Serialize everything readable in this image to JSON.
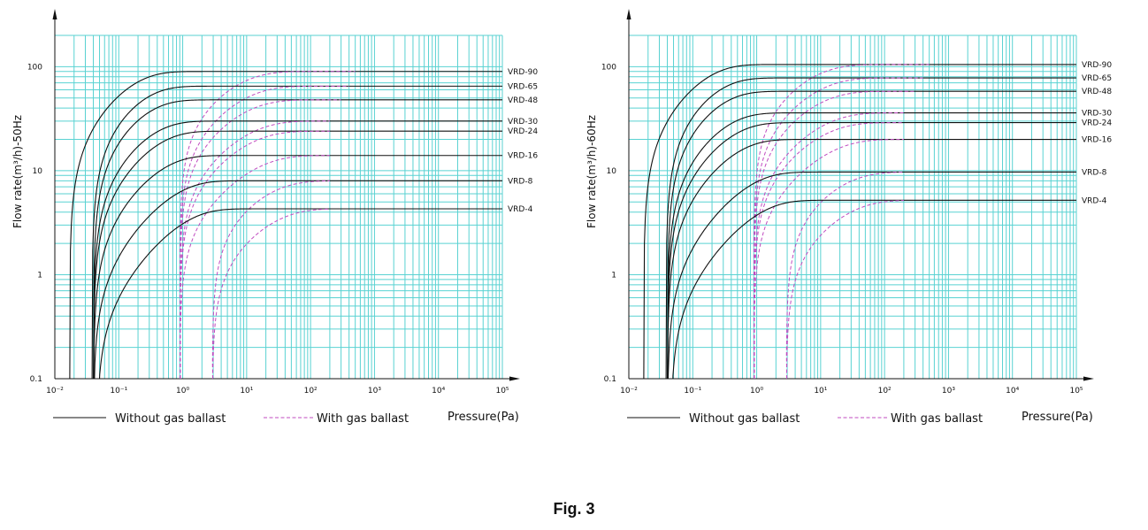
{
  "caption": "Fig. 3",
  "colors": {
    "grid": "#59d2d2",
    "solid": "#111111",
    "dashed": "#c04bc0"
  },
  "chart_data": [
    {
      "type": "line",
      "scale": "log-log",
      "ylabel": "Flow rate(m³/h)-50Hz",
      "xlabel": "Pressure(Pa)",
      "xlim": [
        0.01,
        100000
      ],
      "ylim": [
        0.1,
        200
      ],
      "x_ticks": [
        0.01,
        0.1,
        1,
        10,
        100,
        1000,
        10000,
        100000
      ],
      "x_tick_labels": [
        "10⁻²",
        "10⁻¹",
        "10⁰",
        "10¹",
        "10²",
        "10³",
        "10⁴",
        "10⁵"
      ],
      "y_ticks": [
        0.1,
        1,
        10,
        100
      ],
      "y_tick_labels": [
        "0.1",
        "1",
        "10",
        "100"
      ],
      "grid": true,
      "legend": [
        "Without gas ballast",
        "With gas ballast"
      ],
      "series": [
        {
          "name": "VRD-90",
          "ymax": 90,
          "x0": 0.017,
          "knee": 0.1,
          "xg": 0.9,
          "kg": 4,
          "x_end": 500
        },
        {
          "name": "VRD-65",
          "ymax": 65,
          "x0": 0.038,
          "knee": 0.14,
          "xg": 0.9,
          "kg": 5,
          "x_end": 400
        },
        {
          "name": "VRD-48",
          "ymax": 48,
          "x0": 0.04,
          "knee": 0.16,
          "xg": 0.9,
          "kg": 5,
          "x_end": 300
        },
        {
          "name": "VRD-30",
          "ymax": 30,
          "x0": 0.04,
          "knee": 0.2,
          "xg": 0.9,
          "kg": 6,
          "x_end": 200
        },
        {
          "name": "VRD-24",
          "ymax": 24,
          "x0": 0.04,
          "knee": 0.25,
          "xg": 0.9,
          "kg": 6,
          "x_end": 200
        },
        {
          "name": "VRD-16",
          "ymax": 14,
          "x0": 0.04,
          "knee": 0.3,
          "xg": 0.9,
          "kg": 8,
          "x_end": 200
        },
        {
          "name": "VRD-8",
          "ymax": 8,
          "x0": 0.04,
          "knee": 0.5,
          "xg": 2.9,
          "kg": 12,
          "x_end": 200
        },
        {
          "name": "VRD-4",
          "ymax": 4.3,
          "x0": 0.045,
          "knee": 0.7,
          "xg": 2.9,
          "kg": 15,
          "x_end": 200
        }
      ]
    },
    {
      "type": "line",
      "scale": "log-log",
      "ylabel": "Flow rate(m³/h)-60Hz",
      "xlabel": "Pressure(Pa)",
      "xlim": [
        0.01,
        100000
      ],
      "ylim": [
        0.1,
        200
      ],
      "x_ticks": [
        0.01,
        0.1,
        1,
        10,
        100,
        1000,
        10000,
        100000
      ],
      "x_tick_labels": [
        "10⁻²",
        "10⁻¹",
        "10⁰",
        "10¹",
        "10²",
        "10³",
        "10⁴",
        "10⁵"
      ],
      "y_ticks": [
        0.1,
        1,
        10,
        100
      ],
      "y_tick_labels": [
        "0.1",
        "1",
        "10",
        "100"
      ],
      "grid": true,
      "legend": [
        "Without gas ballast",
        "With gas ballast"
      ],
      "series": [
        {
          "name": "VRD-90",
          "ymax": 105,
          "x0": 0.017,
          "knee": 0.1,
          "xg": 0.9,
          "kg": 4,
          "x_end": 500
        },
        {
          "name": "VRD-65",
          "ymax": 78,
          "x0": 0.038,
          "knee": 0.14,
          "xg": 0.9,
          "kg": 5,
          "x_end": 400
        },
        {
          "name": "VRD-48",
          "ymax": 58,
          "x0": 0.04,
          "knee": 0.16,
          "xg": 0.9,
          "kg": 5,
          "x_end": 300
        },
        {
          "name": "VRD-30",
          "ymax": 36,
          "x0": 0.04,
          "knee": 0.2,
          "xg": 0.9,
          "kg": 6,
          "x_end": 200
        },
        {
          "name": "VRD-24",
          "ymax": 29,
          "x0": 0.04,
          "knee": 0.25,
          "xg": 0.9,
          "kg": 6,
          "x_end": 200
        },
        {
          "name": "VRD-16",
          "ymax": 20,
          "x0": 0.04,
          "knee": 0.3,
          "xg": 0.9,
          "kg": 8,
          "x_end": 200
        },
        {
          "name": "VRD-8",
          "ymax": 9.7,
          "x0": 0.04,
          "knee": 0.5,
          "xg": 2.9,
          "kg": 12,
          "x_end": 200
        },
        {
          "name": "VRD-4",
          "ymax": 5.2,
          "x0": 0.045,
          "knee": 0.7,
          "xg": 2.9,
          "kg": 15,
          "x_end": 200
        }
      ]
    }
  ]
}
